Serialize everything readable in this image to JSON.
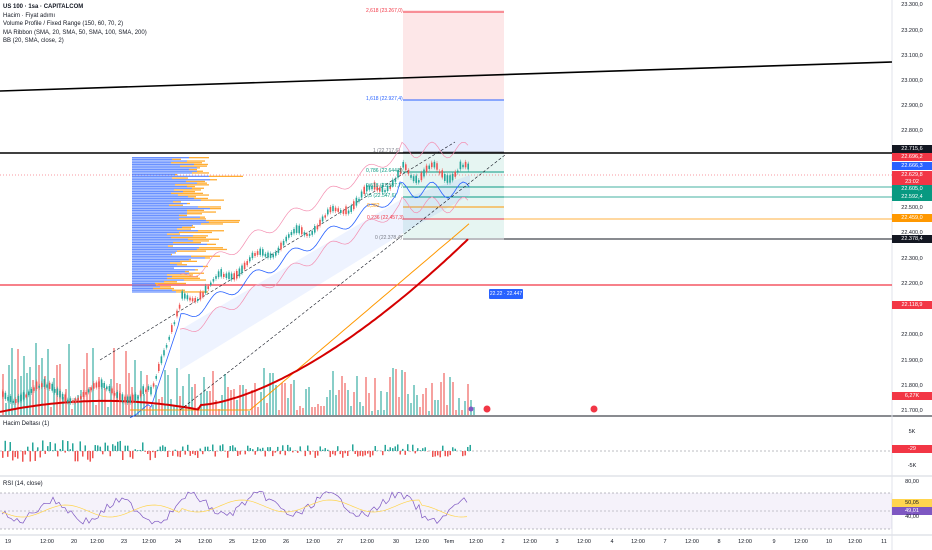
{
  "legend": {
    "symbol": "US 100 · 1sa · CAPITALCOM",
    "indicator_1": "Hacim · Fiyat adımı",
    "indicator_2": "Volume Profile / Fixed Range (150, 60, 70, 2)",
    "indicator_3": "MA Ribbon (SMA, 20, SMA, 50, SMA, 100, SMA, 200)",
    "indicator_4": "BB (20, SMA, close, 2)"
  },
  "panels": {
    "delta_label": "Hacim Deltası (1)",
    "rsi_label": "RSI (14, close)"
  },
  "fib_levels": [
    {
      "label": "2,618 (23.267,0)",
      "color": "#f23645"
    },
    {
      "label": "1,618 (22.927,4)",
      "color": "#2962ff"
    },
    {
      "label": "1 (22.717,6)",
      "color": "#787b86"
    },
    {
      "label": "0,786 (22.644,8)",
      "color": "#089981"
    },
    {
      "label": "0,618 (22.587,7)",
      "color": "#089981"
    },
    {
      "label": "0,5 (22.547,6)",
      "color": "#089981"
    },
    {
      "label": "0,382",
      "color": "#ff9800"
    },
    {
      "label": "0,236 (22.457,3)",
      "color": "#f23645"
    },
    {
      "label": "0 (22.378,4)",
      "color": "#787b86"
    }
  ],
  "price_axis": [
    "23.300,0",
    "23.200,0",
    "23.100,0",
    "23.000,0",
    "22.900,0",
    "22.800,0",
    "22.600,0",
    "22.500,0",
    "22.400,0",
    "22.300,0",
    "22.200,0",
    "22.000,0",
    "21.900,0",
    "21.800,0",
    "21.700,0"
  ],
  "price_badges": [
    {
      "label": "22.715,6",
      "color": "#131722"
    },
    {
      "label": "22.696,2",
      "color": "#f23645"
    },
    {
      "label": "22.666,3",
      "color": "#2962ff"
    },
    {
      "label": "22.629,8",
      "color": "#f23645"
    },
    {
      "label": "23:02",
      "color": "#f23645"
    },
    {
      "label": "22.605,0",
      "color": "#089981"
    },
    {
      "label": "22.592,4",
      "color": "#089981"
    },
    {
      "label": "22.459,0",
      "color": "#ff9800"
    },
    {
      "label": "22.378,4",
      "color": "#131722"
    },
    {
      "label": "22.118,9",
      "color": "#f23645"
    },
    {
      "label": "6,27K",
      "color": "#f23645"
    }
  ],
  "delta_axis": [
    "5K",
    "-29",
    "-5K"
  ],
  "rsi_axis": [
    "80,00",
    "50,05",
    "49,01",
    "40,00"
  ],
  "time_axis": [
    "19",
    "12:00",
    "20",
    "12:00",
    "23",
    "12:00",
    "24",
    "12:00",
    "25",
    "12:00",
    "26",
    "12:00",
    "27",
    "12:00",
    "30",
    "12:00",
    "Tem",
    "12:00",
    "2",
    "12:00",
    "3",
    "12:00",
    "4",
    "12:00",
    "7",
    "12:00",
    "8",
    "12:00",
    "9",
    "12:00",
    "10",
    "12:00",
    "11"
  ],
  "callout": "22.22 · 22.447",
  "colors": {
    "bull": "#26a69a",
    "bear": "#ef5350",
    "ma20": "#2962ff",
    "ma50": "#ff9800",
    "ma200": "#d50000",
    "bb": "#f48fb1",
    "trendline": "#000000",
    "resistance": "#000000",
    "support": "#f23645"
  }
}
